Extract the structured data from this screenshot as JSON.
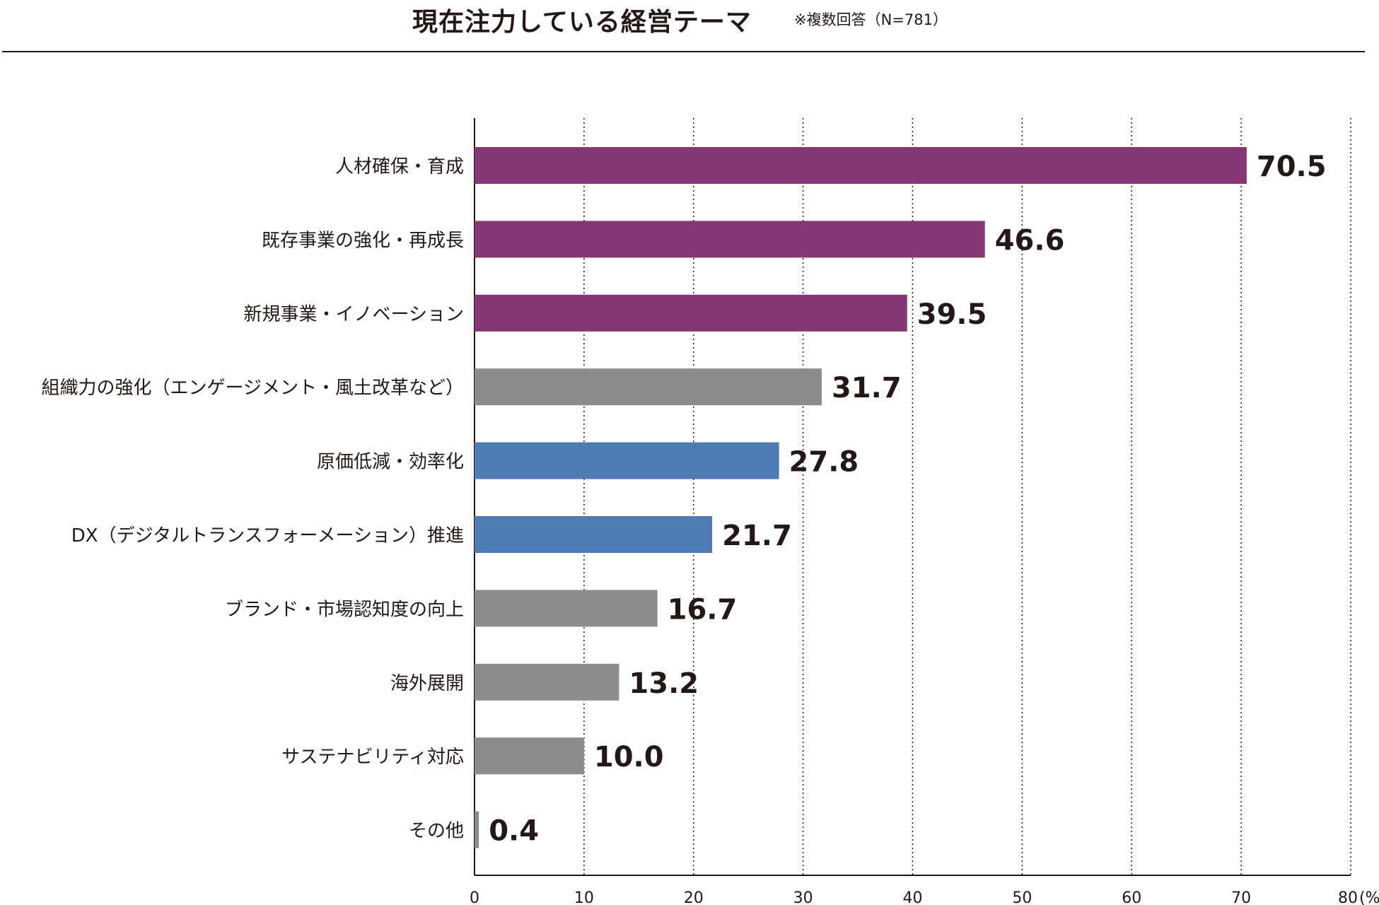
{
  "header": {
    "title": "現在注力している経営テーマ",
    "note": "※複数回答（N=781）"
  },
  "chart_data": {
    "type": "bar",
    "orientation": "horizontal",
    "title": "現在注力している経営テーマ",
    "subtitle": "※複数回答（N=781）",
    "unit": "(%)",
    "xlim": [
      0,
      80
    ],
    "ticks": [
      0,
      10,
      20,
      30,
      40,
      50,
      60,
      70,
      80
    ],
    "grid": "vertical dotted",
    "categories": [
      "人材確保・育成",
      "既存事業の強化・再成長",
      "新規事業・イノベーション",
      "組織力の強化（エンゲージメント・風土改革など）",
      "原価低減・効率化",
      "DX（デジタルトランスフォーメーション）推進",
      "ブランド・市場認知度の向上",
      "海外展開",
      "サステナビリティ対応",
      "その他"
    ],
    "values": [
      70.5,
      46.6,
      39.5,
      31.7,
      27.8,
      21.7,
      16.7,
      13.2,
      10.0,
      0.4
    ],
    "value_labels": [
      "70.5",
      "46.6",
      "39.5",
      "31.7",
      "27.8",
      "21.7",
      "16.7",
      "13.2",
      "10.0",
      "0.4"
    ],
    "colors": [
      "#843774",
      "#843774",
      "#843774",
      "#8c8c8c",
      "#4f7bb5",
      "#4f7bb5",
      "#8c8c8c",
      "#8c8c8c",
      "#8c8c8c",
      "#8c8c8c"
    ]
  }
}
